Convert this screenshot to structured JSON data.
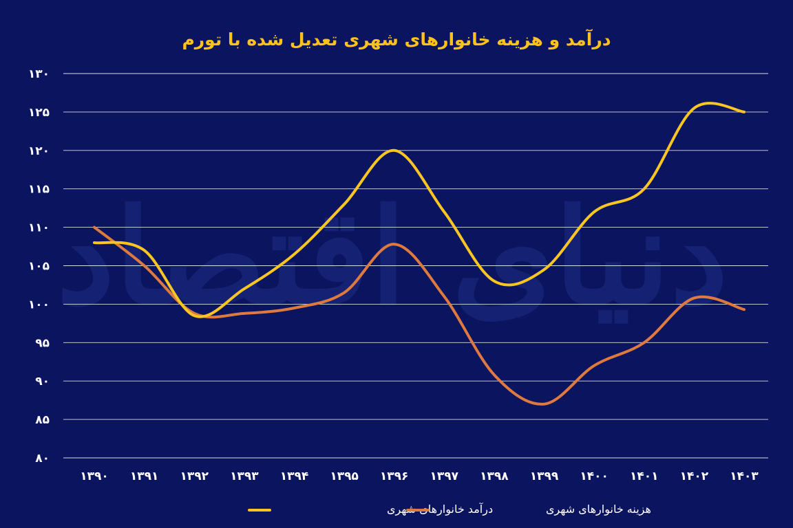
{
  "colors": {
    "background": "#0b145e",
    "income": "#f8c523",
    "expense": "#df7a3f",
    "title": "#ffc21a",
    "grid": "#ffffff",
    "text": "#ffffff"
  },
  "watermark": "دنیای اقتصاد",
  "chart_data": {
    "type": "line",
    "title": "درآمد و هزینه خانوارهای شهری تعدیل شده با تورم",
    "xlabel": "",
    "ylabel": "",
    "categories": [
      "۱۳۹۰",
      "۱۳۹۱",
      "۱۳۹۲",
      "۱۳۹۳",
      "۱۳۹۴",
      "۱۳۹۵",
      "۱۳۹۶",
      "۱۳۹۷",
      "۱۳۹۸",
      "۱۳۹۹",
      "۱۴۰۰",
      "۱۴۰۱",
      "۱۴۰۲",
      "۱۴۰۳"
    ],
    "ylim": [
      80,
      130
    ],
    "yticks": [
      {
        "value": 130,
        "label": "۱۳۰"
      },
      {
        "value": 125,
        "label": "۱۲۵"
      },
      {
        "value": 120,
        "label": "۱۲۰"
      },
      {
        "value": 115,
        "label": "۱۱۵"
      },
      {
        "value": 110,
        "label": "۱۱۰"
      },
      {
        "value": 105,
        "label": "۱۰۵"
      },
      {
        "value": 100,
        "label": "۱۰۰"
      },
      {
        "value": 95,
        "label": "۹۵"
      },
      {
        "value": 90,
        "label": "۹۰"
      },
      {
        "value": 85,
        "label": "۸۵"
      },
      {
        "value": 80,
        "label": "۸۰"
      }
    ],
    "grid": true,
    "legend_position": "bottom",
    "series": [
      {
        "name": "درآمد خانوارهای شهری",
        "color": "#f8c523",
        "values": [
          108,
          107,
          98.5,
          102,
          106.5,
          113,
          120,
          112,
          103,
          104.5,
          112,
          115,
          125.5,
          125
        ]
      },
      {
        "name": "هزینه خانوارهای شهری",
        "color": "#df7a3f",
        "values": [
          110,
          105,
          98.8,
          98.8,
          99.5,
          101.5,
          107.8,
          101,
          90.8,
          87,
          92,
          95,
          100.8,
          99.3
        ]
      }
    ]
  }
}
